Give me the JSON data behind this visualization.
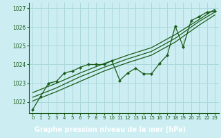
{
  "title": "Graphe pression niveau de la mer (hPa)",
  "bg_color": "#cceef2",
  "plot_bg_color": "#cceef2",
  "footer_bg": "#2d6e2d",
  "footer_text_color": "#ffffff",
  "grid_color": "#aad8dc",
  "line_color": "#1a5c1a",
  "marker_color": "#1a5c1a",
  "xlim": [
    -0.5,
    23.5
  ],
  "ylim": [
    1021.4,
    1027.3
  ],
  "yticks": [
    1022,
    1023,
    1024,
    1025,
    1026,
    1027
  ],
  "xticks": [
    0,
    1,
    2,
    3,
    4,
    5,
    6,
    7,
    8,
    9,
    10,
    11,
    12,
    13,
    14,
    15,
    16,
    17,
    18,
    19,
    20,
    21,
    22,
    23
  ],
  "main_line": [
    [
      0,
      1021.6
    ],
    [
      1,
      1022.3
    ],
    [
      2,
      1023.0
    ],
    [
      3,
      1023.1
    ],
    [
      4,
      1023.55
    ],
    [
      5,
      1023.65
    ],
    [
      6,
      1023.85
    ],
    [
      7,
      1024.0
    ],
    [
      8,
      1024.0
    ],
    [
      9,
      1024.0
    ],
    [
      10,
      1024.2
    ],
    [
      11,
      1023.15
    ],
    [
      12,
      1023.55
    ],
    [
      13,
      1023.8
    ],
    [
      14,
      1023.5
    ],
    [
      15,
      1023.5
    ],
    [
      16,
      1024.05
    ],
    [
      17,
      1024.5
    ],
    [
      18,
      1026.05
    ],
    [
      19,
      1024.95
    ],
    [
      20,
      1026.35
    ],
    [
      21,
      1026.55
    ],
    [
      22,
      1026.8
    ],
    [
      23,
      1026.85
    ]
  ],
  "smooth_lines": [
    [
      [
        0,
        1022.05
      ],
      [
        3,
        1022.55
      ],
      [
        6,
        1023.1
      ],
      [
        9,
        1023.65
      ],
      [
        12,
        1024.1
      ],
      [
        15,
        1024.5
      ],
      [
        18,
        1025.2
      ],
      [
        21,
        1026.1
      ],
      [
        23,
        1026.65
      ]
    ],
    [
      [
        0,
        1022.25
      ],
      [
        3,
        1022.75
      ],
      [
        6,
        1023.35
      ],
      [
        9,
        1023.85
      ],
      [
        12,
        1024.3
      ],
      [
        15,
        1024.7
      ],
      [
        18,
        1025.4
      ],
      [
        21,
        1026.3
      ],
      [
        23,
        1026.8
      ]
    ],
    [
      [
        0,
        1022.5
      ],
      [
        3,
        1023.0
      ],
      [
        6,
        1023.55
      ],
      [
        9,
        1024.05
      ],
      [
        12,
        1024.5
      ],
      [
        15,
        1024.9
      ],
      [
        18,
        1025.6
      ],
      [
        21,
        1026.4
      ],
      [
        23,
        1026.95
      ]
    ]
  ]
}
